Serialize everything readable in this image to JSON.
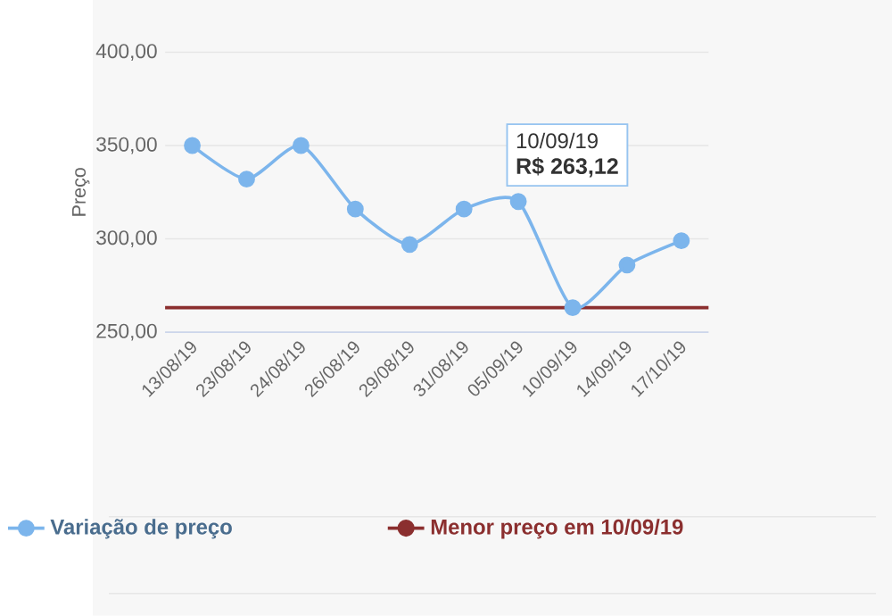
{
  "chart_data": {
    "type": "line",
    "ylabel": "Preço",
    "categories": [
      "13/08/19",
      "23/08/19",
      "24/08/19",
      "26/08/19",
      "29/08/19",
      "31/08/19",
      "05/09/19",
      "10/09/19",
      "14/09/19",
      "17/10/19"
    ],
    "series": [
      {
        "name": "Variação de preço",
        "color": "#7cb5ec",
        "values": [
          350,
          332,
          350,
          316,
          297,
          316,
          320,
          263.12,
          286,
          299
        ]
      }
    ],
    "ylim": [
      250,
      400
    ],
    "yticks": [
      {
        "value": 250,
        "label": "250,00"
      },
      {
        "value": 300,
        "label": "300,00"
      },
      {
        "value": 350,
        "label": "350,00"
      },
      {
        "value": 400,
        "label": "400,00"
      }
    ],
    "ref_lines": [
      {
        "axis": "y",
        "value": 263.12,
        "label": "Menor preço em 10/09/19",
        "color": "#8b2f2f"
      }
    ],
    "annotations": [
      "10/09/19",
      "R$ 263,12"
    ],
    "grid": "y",
    "marker": "circle",
    "line_style": "solid",
    "legend": "bottom"
  }
}
